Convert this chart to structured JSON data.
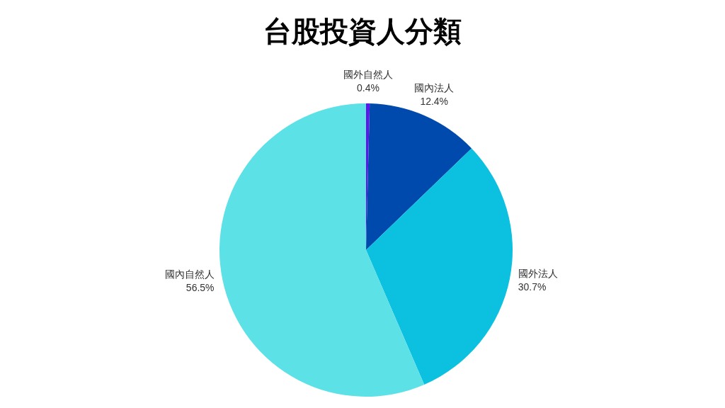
{
  "chart_data": {
    "type": "pie",
    "title": "台股投資人分類",
    "categories": [
      "國外自然人",
      "國內法人",
      "國外法人",
      "國內自然人"
    ],
    "values": [
      0.4,
      12.4,
      30.7,
      56.5
    ],
    "colors": [
      "#5e17eb",
      "#004aad",
      "#0cc0df",
      "#5ce1e6"
    ],
    "value_labels": [
      "0.4%",
      "12.4%",
      "30.7%",
      "56.5%"
    ]
  }
}
